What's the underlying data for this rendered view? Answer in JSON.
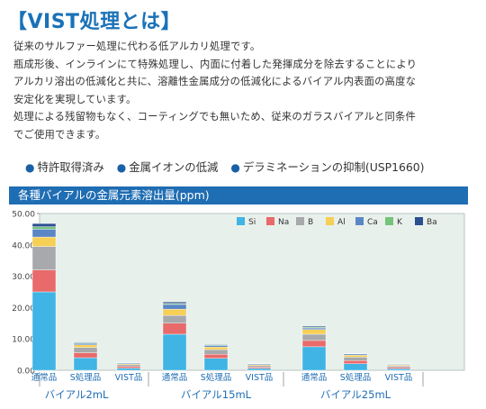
{
  "title": "【VIST処理とは】",
  "paragraphs": [
    "従来のサルファー処理に代わる低アルカリ処理です。",
    "瓶成形後、インラインにて特殊処理し、内面に付着した発揮成分を除去することにより",
    "アルカリ溶出の低減化と共に、溶離性金属成分の低減化によるバイアル内表面の高度な",
    "安定化を実現しています。",
    "処理による残留物もなく、コーティングでも無いため、従来のガラスバイアルと同条件",
    "でご使用できます。"
  ],
  "features": [
    "特許取得済み",
    "金属イオンの低減",
    "デラミネーションの抑制(USP1660)"
  ],
  "colors": {
    "accent": "#1f6db3",
    "title": "#1a72b8",
    "plot_bg": "#e8f0eb"
  },
  "chart_data": {
    "type": "bar",
    "stacked": true,
    "title": "各種バイアルの金属元素溶出量(ppm)",
    "ylim": [
      0,
      50
    ],
    "yticks": [
      "0.00",
      "10.00",
      "20.00",
      "30.00",
      "40.00",
      "50.00"
    ],
    "categories": [
      "通常品",
      "S処理品",
      "VIST品",
      "通常品",
      "S処理品",
      "VIST品",
      "通常品",
      "S処理品",
      "VIST品"
    ],
    "groups": [
      {
        "label": "バイアル2mL",
        "start": 0,
        "count": 3
      },
      {
        "label": "バイアル15mL",
        "start": 3,
        "count": 3
      },
      {
        "label": "バイアル25mL",
        "start": 6,
        "count": 3
      }
    ],
    "legend_position": "top-right",
    "grid": false,
    "series": [
      {
        "name": "Si",
        "color": "#3fb4e5",
        "values": [
          25.0,
          4.0,
          0.7,
          11.5,
          3.8,
          0.6,
          7.5,
          2.1,
          0.5
        ]
      },
      {
        "name": "Na",
        "color": "#e96a6a",
        "values": [
          7.0,
          1.6,
          0.5,
          3.5,
          1.3,
          0.4,
          2.0,
          1.0,
          0.4
        ]
      },
      {
        "name": "B",
        "color": "#a7a9ac",
        "values": [
          7.5,
          1.7,
          0.6,
          2.5,
          1.5,
          0.5,
          2.0,
          1.1,
          0.5
        ]
      },
      {
        "name": "Al",
        "color": "#f6cf55",
        "values": [
          3.0,
          0.8,
          0.3,
          2.0,
          0.8,
          0.3,
          1.5,
          0.6,
          0.3
        ]
      },
      {
        "name": "Ca",
        "color": "#5b86c6",
        "values": [
          2.5,
          0.5,
          0.3,
          1.5,
          0.5,
          0.3,
          0.5,
          0.4,
          0.2
        ]
      },
      {
        "name": "K",
        "color": "#74c47a",
        "values": [
          0.8,
          0.2,
          0.1,
          0.3,
          0.2,
          0.1,
          0.3,
          0.1,
          0.1
        ]
      },
      {
        "name": "Ba",
        "color": "#2b4f91",
        "values": [
          1.0,
          0.2,
          0.1,
          0.5,
          0.2,
          0.1,
          0.3,
          0.1,
          0.1
        ]
      }
    ]
  }
}
